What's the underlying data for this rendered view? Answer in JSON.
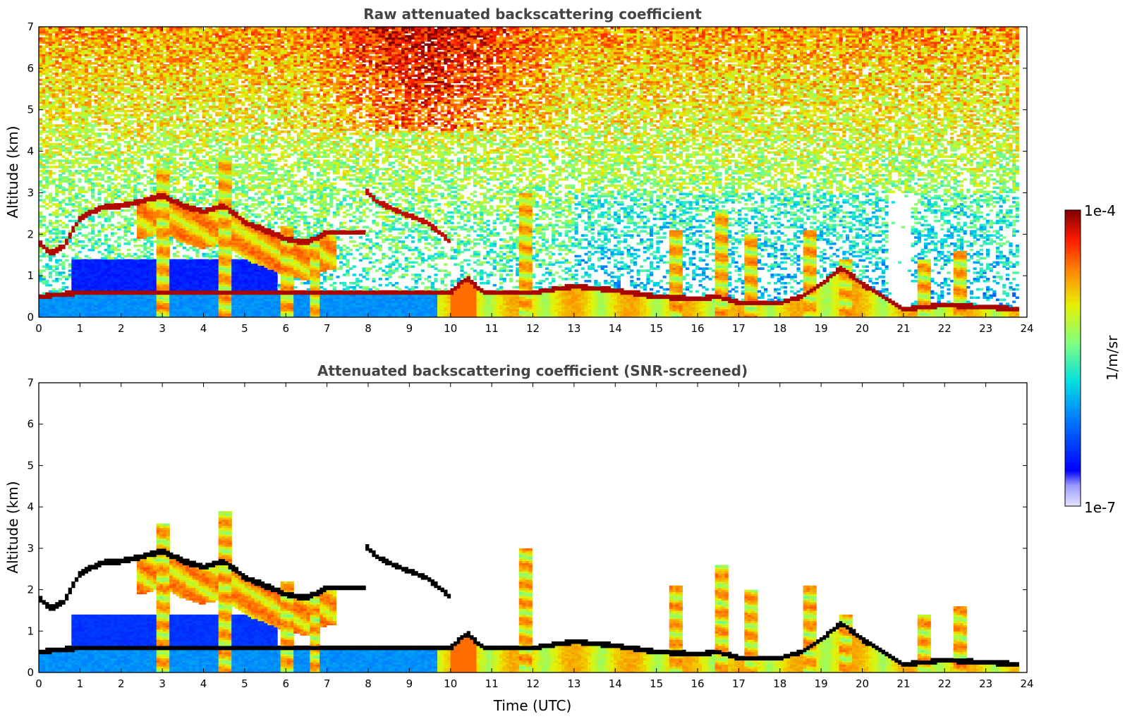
{
  "chart_data": [
    {
      "type": "heatmap",
      "title": "Raw attenuated backscattering coefficient",
      "xlabel": "",
      "ylabel": "Altitude (km)",
      "xlim": [
        0,
        24
      ],
      "ylim": [
        0,
        7
      ],
      "xticks": [
        "0",
        "1",
        "2",
        "3",
        "4",
        "5",
        "6",
        "7",
        "8",
        "9",
        "10",
        "11",
        "12",
        "13",
        "14",
        "15",
        "16",
        "17",
        "18",
        "19",
        "20",
        "21",
        "22",
        "23",
        "24"
      ],
      "yticks": [
        "0",
        "1",
        "2",
        "3",
        "4",
        "5",
        "6",
        "7"
      ],
      "screened": false,
      "features": {
        "cloud_top_km": [
          [
            0.0,
            1.8
          ],
          [
            0.3,
            1.55
          ],
          [
            0.6,
            1.7
          ],
          [
            1.0,
            2.4
          ],
          [
            1.5,
            2.65
          ],
          [
            2.0,
            2.7
          ],
          [
            2.5,
            2.8
          ],
          [
            3.0,
            2.95
          ],
          [
            3.5,
            2.7
          ],
          [
            4.0,
            2.55
          ],
          [
            4.5,
            2.7
          ],
          [
            5.0,
            2.3
          ],
          [
            5.5,
            2.1
          ],
          [
            6.0,
            1.9
          ],
          [
            6.5,
            1.8
          ],
          [
            7.0,
            2.05
          ],
          [
            7.5,
            2.05
          ],
          [
            7.9,
            2.05
          ]
        ],
        "elevated_layer_km": [
          [
            7.9,
            3.1
          ],
          [
            8.2,
            2.8
          ],
          [
            8.6,
            2.6
          ],
          [
            9.0,
            2.45
          ],
          [
            9.4,
            2.3
          ],
          [
            9.8,
            2.0
          ],
          [
            10.0,
            1.8
          ]
        ],
        "boundary_layer_top_km": [
          [
            0.0,
            0.5
          ],
          [
            1.0,
            0.6
          ],
          [
            2.0,
            0.6
          ],
          [
            3.0,
            0.6
          ],
          [
            4.0,
            0.6
          ],
          [
            5.0,
            0.6
          ],
          [
            6.0,
            0.6
          ],
          [
            7.0,
            0.6
          ],
          [
            8.0,
            0.6
          ],
          [
            9.0,
            0.6
          ],
          [
            10.0,
            0.6
          ],
          [
            10.4,
            0.95
          ],
          [
            10.8,
            0.6
          ],
          [
            12.0,
            0.6
          ],
          [
            13.0,
            0.75
          ],
          [
            14.0,
            0.65
          ],
          [
            15.0,
            0.5
          ],
          [
            16.0,
            0.45
          ],
          [
            16.5,
            0.5
          ],
          [
            17.0,
            0.35
          ],
          [
            18.0,
            0.35
          ],
          [
            18.5,
            0.5
          ],
          [
            19.0,
            0.8
          ],
          [
            19.5,
            1.2
          ],
          [
            20.0,
            0.8
          ],
          [
            20.5,
            0.5
          ],
          [
            21.0,
            0.2
          ],
          [
            22.0,
            0.3
          ],
          [
            23.0,
            0.25
          ],
          [
            23.8,
            0.2
          ]
        ],
        "convective_plumes": [
          {
            "t": 3.0,
            "top_km": 3.6
          },
          {
            "t": 4.5,
            "top_km": 3.9
          },
          {
            "t": 6.0,
            "top_km": 2.2
          },
          {
            "t": 6.7,
            "top_km": 1.9
          },
          {
            "t": 11.8,
            "top_km": 3.0
          },
          {
            "t": 15.5,
            "top_km": 2.1
          },
          {
            "t": 16.6,
            "top_km": 2.6
          },
          {
            "t": 17.3,
            "top_km": 2.0
          },
          {
            "t": 18.7,
            "top_km": 2.1
          },
          {
            "t": 19.6,
            "top_km": 1.4
          },
          {
            "t": 21.5,
            "top_km": 1.4
          },
          {
            "t": 22.4,
            "top_km": 1.6
          }
        ]
      }
    },
    {
      "type": "heatmap",
      "title": "Attenuated backscattering coefficient (SNR-screened)",
      "xlabel": "Time (UTC)",
      "ylabel": "Altitude (km)",
      "xlim": [
        0,
        24
      ],
      "ylim": [
        0,
        7
      ],
      "xticks": [
        "0",
        "1",
        "2",
        "3",
        "4",
        "5",
        "6",
        "7",
        "8",
        "9",
        "10",
        "11",
        "12",
        "13",
        "14",
        "15",
        "16",
        "17",
        "18",
        "19",
        "20",
        "21",
        "22",
        "23",
        "24"
      ],
      "yticks": [
        "0",
        "1",
        "2",
        "3",
        "4",
        "5",
        "6",
        "7"
      ],
      "screened": true
    }
  ],
  "colorbar": {
    "max_label": "1e-4",
    "min_label": "1e-7",
    "label": "1/m/sr",
    "colormap": "jet",
    "scale": "log"
  }
}
